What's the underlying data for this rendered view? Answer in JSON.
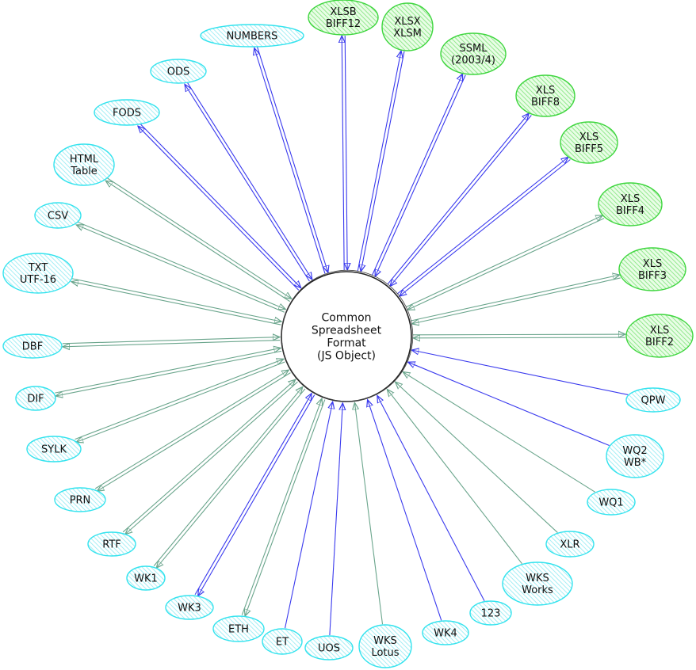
{
  "colors": {
    "blue_edge": "#3a3aee",
    "green_edge": "#6aa58c",
    "cyan_stroke": "#33e3ee",
    "cyan_fill": "#c9f6fa",
    "green_stroke": "#3ed63e",
    "green_fill": "#a6f0a0"
  },
  "center": {
    "lines": [
      "Common",
      "Spreadsheet",
      "Format",
      "(JS Object)"
    ]
  },
  "nodes": [
    {
      "lines": [
        "NUMBERS"
      ],
      "fill": "cyan",
      "edge": "blue",
      "read": true,
      "write": true
    },
    {
      "lines": [
        "XLSB",
        "BIFF12"
      ],
      "fill": "green",
      "edge": "blue",
      "read": true,
      "write": true
    },
    {
      "lines": [
        "XLSX",
        "XLSM"
      ],
      "fill": "green",
      "edge": "blue",
      "read": true,
      "write": true
    },
    {
      "lines": [
        "SSML",
        "(2003/4)"
      ],
      "fill": "green",
      "edge": "blue",
      "read": true,
      "write": true
    },
    {
      "lines": [
        "XLS",
        "BIFF8"
      ],
      "fill": "green",
      "edge": "blue",
      "read": true,
      "write": true
    },
    {
      "lines": [
        "XLS",
        "BIFF5"
      ],
      "fill": "green",
      "edge": "blue",
      "read": true,
      "write": true
    },
    {
      "lines": [
        "XLS",
        "BIFF4"
      ],
      "fill": "green",
      "edge": "green",
      "read": true,
      "write": true
    },
    {
      "lines": [
        "XLS",
        "BIFF3"
      ],
      "fill": "green",
      "edge": "green",
      "read": true,
      "write": true
    },
    {
      "lines": [
        "XLS",
        "BIFF2"
      ],
      "fill": "green",
      "edge": "green",
      "read": true,
      "write": true
    },
    {
      "lines": [
        "QPW"
      ],
      "fill": "cyan",
      "edge": "blue",
      "read": true,
      "write": false
    },
    {
      "lines": [
        "WQ2",
        "WB*"
      ],
      "fill": "cyan",
      "edge": "blue",
      "read": true,
      "write": false
    },
    {
      "lines": [
        "WQ1"
      ],
      "fill": "cyan",
      "edge": "green",
      "read": true,
      "write": false
    },
    {
      "lines": [
        "XLR"
      ],
      "fill": "cyan",
      "edge": "green",
      "read": true,
      "write": false
    },
    {
      "lines": [
        "WKS",
        "Works"
      ],
      "fill": "cyan",
      "edge": "green",
      "read": true,
      "write": false
    },
    {
      "lines": [
        "123"
      ],
      "fill": "cyan",
      "edge": "blue",
      "read": true,
      "write": false
    },
    {
      "lines": [
        "WK4"
      ],
      "fill": "cyan",
      "edge": "blue",
      "read": true,
      "write": false
    },
    {
      "lines": [
        "WKS",
        "Lotus"
      ],
      "fill": "cyan",
      "edge": "green",
      "read": true,
      "write": false
    },
    {
      "lines": [
        "UOS"
      ],
      "fill": "cyan",
      "edge": "blue",
      "read": true,
      "write": false
    },
    {
      "lines": [
        "ET"
      ],
      "fill": "cyan",
      "edge": "blue",
      "read": true,
      "write": false
    },
    {
      "lines": [
        "ETH"
      ],
      "fill": "cyan",
      "edge": "green",
      "read": true,
      "write": true
    },
    {
      "lines": [
        "WK3"
      ],
      "fill": "cyan",
      "edge": "blue",
      "read": true,
      "write": true
    },
    {
      "lines": [
        "WK1"
      ],
      "fill": "cyan",
      "edge": "green",
      "read": true,
      "write": true
    },
    {
      "lines": [
        "RTF"
      ],
      "fill": "cyan",
      "edge": "green",
      "read": true,
      "write": true
    },
    {
      "lines": [
        "PRN"
      ],
      "fill": "cyan",
      "edge": "green",
      "read": true,
      "write": true
    },
    {
      "lines": [
        "SYLK"
      ],
      "fill": "cyan",
      "edge": "green",
      "read": true,
      "write": true
    },
    {
      "lines": [
        "DIF"
      ],
      "fill": "cyan",
      "edge": "green",
      "read": true,
      "write": true
    },
    {
      "lines": [
        "DBF"
      ],
      "fill": "cyan",
      "edge": "green",
      "read": true,
      "write": true
    },
    {
      "lines": [
        "TXT",
        "UTF-16"
      ],
      "fill": "cyan",
      "edge": "green",
      "read": true,
      "write": true
    },
    {
      "lines": [
        "CSV"
      ],
      "fill": "cyan",
      "edge": "green",
      "read": true,
      "write": true
    },
    {
      "lines": [
        "HTML",
        "Table"
      ],
      "fill": "cyan",
      "edge": "green",
      "read": true,
      "write": true
    },
    {
      "lines": [
        "FODS"
      ],
      "fill": "cyan",
      "edge": "blue",
      "read": true,
      "write": true
    },
    {
      "lines": [
        "ODS"
      ],
      "fill": "cyan",
      "edge": "blue",
      "read": true,
      "write": true
    }
  ]
}
